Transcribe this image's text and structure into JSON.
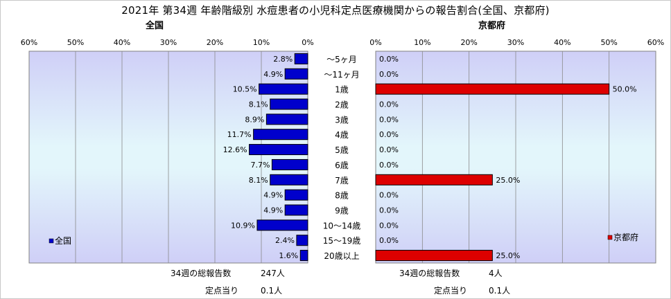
{
  "title": "2021年 第34週 年齢階級別 水痘患者の小児科定点医療機関からの報告割合(全国、京都府)",
  "left": {
    "subtitle": "全国",
    "legend": "全国",
    "color": "#0000cc",
    "total_label": "34週の総報告数",
    "total_value": "247人",
    "per_label": "定点当り",
    "per_value": "0.1人"
  },
  "right": {
    "subtitle": "京都府",
    "legend": "京都府",
    "color": "#dd0000",
    "total_label": "34週の総報告数",
    "total_value": "4人",
    "per_label": "定点当り",
    "per_value": "0.1人"
  },
  "chart_data": [
    {
      "type": "bar",
      "orientation": "horizontal",
      "direction": "right-to-left",
      "title": "全国",
      "categories": [
        "～5ヶ月",
        "～11ヶ月",
        "1歳",
        "2歳",
        "3歳",
        "4歳",
        "5歳",
        "6歳",
        "7歳",
        "8歳",
        "9歳",
        "10～14歳",
        "15～19歳",
        "20歳以上"
      ],
      "series": [
        {
          "name": "全国",
          "values": [
            2.8,
            4.9,
            10.5,
            8.1,
            8.9,
            11.7,
            12.6,
            7.7,
            8.1,
            4.9,
            4.9,
            10.9,
            2.4,
            1.6
          ]
        }
      ],
      "value_labels": [
        "2.8%",
        "4.9%",
        "10.5%",
        "8.1%",
        "8.9%",
        "11.7%",
        "12.6%",
        "7.7%",
        "8.1%",
        "4.9%",
        "4.9%",
        "10.9%",
        "2.4%",
        "1.6%"
      ],
      "xlim": [
        0,
        60
      ],
      "ticks": [
        0,
        10,
        20,
        30,
        40,
        50,
        60
      ],
      "tick_labels": [
        "0%",
        "10%",
        "20%",
        "30%",
        "40%",
        "50%",
        "60%"
      ],
      "grid": true,
      "legend_position": "bottom-left"
    },
    {
      "type": "bar",
      "orientation": "horizontal",
      "direction": "left-to-right",
      "title": "京都府",
      "categories": [
        "～5ヶ月",
        "～11ヶ月",
        "1歳",
        "2歳",
        "3歳",
        "4歳",
        "5歳",
        "6歳",
        "7歳",
        "8歳",
        "9歳",
        "10～14歳",
        "15～19歳",
        "20歳以上"
      ],
      "series": [
        {
          "name": "京都府",
          "values": [
            0,
            0,
            50,
            0,
            0,
            0,
            0,
            0,
            25,
            0,
            0,
            0,
            0,
            25
          ]
        }
      ],
      "value_labels": [
        "0.0%",
        "0.0%",
        "50.0%",
        "0.0%",
        "0.0%",
        "0.0%",
        "0.0%",
        "0.0%",
        "25.0%",
        "0.0%",
        "0.0%",
        "0.0%",
        "0.0%",
        "25.0%"
      ],
      "xlim": [
        0,
        60
      ],
      "ticks": [
        0,
        10,
        20,
        30,
        40,
        50,
        60
      ],
      "tick_labels": [
        "0%",
        "10%",
        "20%",
        "30%",
        "40%",
        "50%",
        "60%"
      ],
      "grid": true,
      "legend_position": "bottom-right"
    }
  ]
}
